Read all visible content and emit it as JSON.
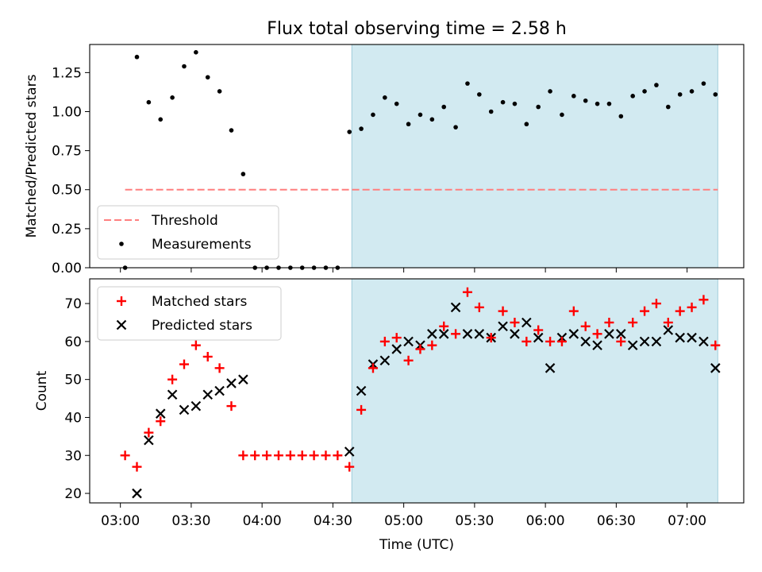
{
  "figure": {
    "title": "Flux total observing time = 2.58 h"
  },
  "colors": {
    "threshold": "#ff7f7f",
    "measurement": "#000000",
    "matched": "#ff0000",
    "predicted": "#000000",
    "shade": "#add8e6"
  },
  "chart_data": [
    {
      "type": "scatter",
      "panel": "top",
      "ylabel": "Matched/Predicted stars",
      "xlabel": "",
      "ylim": [
        0,
        1.43
      ],
      "yticks": [
        0.0,
        0.25,
        0.5,
        0.75,
        1.0,
        1.25
      ],
      "ytick_labels": [
        "0.00",
        "0.25",
        "0.50",
        "0.75",
        "1.00",
        "1.25"
      ],
      "xlim": [
        "02:47",
        "07:24"
      ],
      "xticks": [
        "03:00",
        "03:30",
        "04:00",
        "04:30",
        "05:00",
        "05:30",
        "06:00",
        "06:30",
        "07:00"
      ],
      "x_tick_labels_shown": false,
      "shaded_span": [
        "04:38",
        "07:13"
      ],
      "threshold": {
        "label": "Threshold",
        "value": 0.5,
        "x_range": [
          "03:02",
          "07:13"
        ]
      },
      "legend": {
        "position": "lower-left",
        "entries": [
          "Threshold",
          "Measurements"
        ]
      },
      "series": [
        {
          "name": "Measurements",
          "marker": "dot",
          "x": [
            "03:02",
            "03:07",
            "03:12",
            "03:17",
            "03:22",
            "03:27",
            "03:32",
            "03:37",
            "03:42",
            "03:47",
            "03:52",
            "03:57",
            "04:02",
            "04:07",
            "04:12",
            "04:17",
            "04:22",
            "04:27",
            "04:32",
            "04:37",
            "04:42",
            "04:47",
            "04:52",
            "04:57",
            "05:02",
            "05:07",
            "05:12",
            "05:17",
            "05:22",
            "05:27",
            "05:32",
            "05:37",
            "05:42",
            "05:47",
            "05:52",
            "05:57",
            "06:02",
            "06:07",
            "06:12",
            "06:17",
            "06:22",
            "06:27",
            "06:32",
            "06:37",
            "06:42",
            "06:47",
            "06:52",
            "06:57",
            "07:02",
            "07:07",
            "07:12"
          ],
          "y": [
            0.0,
            1.35,
            1.06,
            0.95,
            1.09,
            1.29,
            1.38,
            1.22,
            1.13,
            0.88,
            0.6,
            0.0,
            0.0,
            0.0,
            0.0,
            0.0,
            0.0,
            0.0,
            0.0,
            0.87,
            0.89,
            0.98,
            1.09,
            1.05,
            0.92,
            0.98,
            0.95,
            1.03,
            0.9,
            1.18,
            1.11,
            1.0,
            1.06,
            1.05,
            0.92,
            1.03,
            1.13,
            0.98,
            1.1,
            1.07,
            1.05,
            1.05,
            0.97,
            1.1,
            1.13,
            1.17,
            1.03,
            1.11,
            1.13,
            1.18,
            1.11
          ]
        }
      ]
    },
    {
      "type": "scatter",
      "panel": "bottom",
      "ylabel": "Count",
      "xlabel": "Time (UTC)",
      "ylim": [
        17.5,
        76.5
      ],
      "yticks": [
        20,
        30,
        40,
        50,
        60,
        70
      ],
      "ytick_labels": [
        "20",
        "30",
        "40",
        "50",
        "60",
        "70"
      ],
      "xlim": [
        "02:47",
        "07:24"
      ],
      "xticks": [
        "03:00",
        "03:30",
        "04:00",
        "04:30",
        "05:00",
        "05:30",
        "06:00",
        "06:30",
        "07:00"
      ],
      "xtick_labels": [
        "03:00",
        "03:30",
        "04:00",
        "04:30",
        "05:00",
        "05:30",
        "06:00",
        "06:30",
        "07:00"
      ],
      "shaded_span": [
        "04:38",
        "07:13"
      ],
      "legend": {
        "position": "upper-left",
        "entries": [
          "Matched stars",
          "Predicted stars"
        ]
      },
      "series": [
        {
          "name": "Matched stars",
          "marker": "plus",
          "x": [
            "03:02",
            "03:07",
            "03:12",
            "03:17",
            "03:22",
            "03:27",
            "03:32",
            "03:37",
            "03:42",
            "03:47",
            "03:52",
            "03:57",
            "04:02",
            "04:07",
            "04:12",
            "04:17",
            "04:22",
            "04:27",
            "04:32",
            "04:37",
            "04:42",
            "04:47",
            "04:52",
            "04:57",
            "05:02",
            "05:07",
            "05:12",
            "05:17",
            "05:22",
            "05:27",
            "05:32",
            "05:37",
            "05:42",
            "05:47",
            "05:52",
            "05:57",
            "06:02",
            "06:07",
            "06:12",
            "06:17",
            "06:22",
            "06:27",
            "06:32",
            "06:37",
            "06:42",
            "06:47",
            "06:52",
            "06:57",
            "07:02",
            "07:07",
            "07:12"
          ],
          "y": [
            30,
            27,
            36,
            39,
            50,
            54,
            59,
            56,
            53,
            43,
            30,
            30,
            30,
            30,
            30,
            30,
            30,
            30,
            30,
            27,
            42,
            53,
            60,
            61,
            55,
            58,
            59,
            64,
            62,
            73,
            69,
            61,
            68,
            65,
            60,
            63,
            60,
            60,
            68,
            64,
            62,
            65,
            60,
            65,
            68,
            70,
            65,
            68,
            69,
            71,
            59
          ]
        },
        {
          "name": "Predicted stars",
          "marker": "x",
          "x": [
            "03:07",
            "03:12",
            "03:17",
            "03:22",
            "03:27",
            "03:32",
            "03:37",
            "03:42",
            "03:47",
            "03:52",
            "04:37",
            "04:42",
            "04:47",
            "04:52",
            "04:57",
            "05:02",
            "05:07",
            "05:12",
            "05:17",
            "05:22",
            "05:27",
            "05:32",
            "05:37",
            "05:42",
            "05:47",
            "05:52",
            "05:57",
            "06:02",
            "06:07",
            "06:12",
            "06:17",
            "06:22",
            "06:27",
            "06:32",
            "06:37",
            "06:42",
            "06:47",
            "06:52",
            "06:57",
            "07:02",
            "07:07",
            "07:12"
          ],
          "y": [
            20,
            34,
            41,
            46,
            42,
            43,
            46,
            47,
            49,
            50,
            31,
            47,
            54,
            55,
            58,
            60,
            59,
            62,
            62,
            69,
            62,
            62,
            61,
            64,
            62,
            65,
            61,
            53,
            61,
            62,
            60,
            59,
            62,
            62,
            59,
            60,
            60,
            63,
            61,
            61,
            60,
            53
          ]
        }
      ]
    }
  ]
}
